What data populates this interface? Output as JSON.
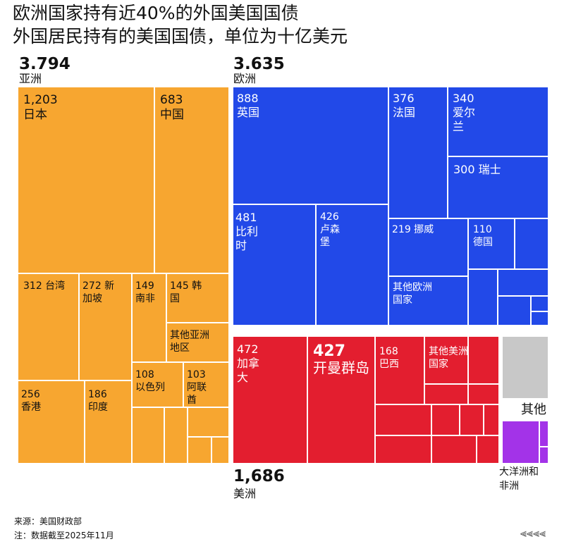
{
  "title": "欧洲国家持有近40%的外国美国国债",
  "subtitle": "外国居民持有的美国国债，单位为十亿美元",
  "source": "来源：美国财政部",
  "note": "注：数据截至2025年11月",
  "chart_data": {
    "type": "treemap",
    "unit": "十亿美元",
    "colors": {
      "亚洲": "#F7A630",
      "欧洲": "#2249E8",
      "美洲": "#E31E2F",
      "其他": "#C8C8C8",
      "大洋洲和非洲": "#A333E8"
    },
    "groups": [
      {
        "name": "亚洲",
        "total": "3.794",
        "color": "#F7A630",
        "items": [
          {
            "label": "1,203 日本",
            "value": 1203
          },
          {
            "label": "683 中国",
            "value": 683
          },
          {
            "label": "312 台湾",
            "value": 312
          },
          {
            "label": "272 新加坡",
            "value": 272
          },
          {
            "label": "149 南非",
            "value": 149
          },
          {
            "label": "145 韩国",
            "value": 145
          },
          {
            "label": "其他亚洲地区",
            "value": null
          },
          {
            "label": "256 香港",
            "value": 256
          },
          {
            "label": "186 印度",
            "value": 186
          },
          {
            "label": "108 以色列",
            "value": 108
          },
          {
            "label": "103 阿联酋",
            "value": 103
          },
          {
            "label": "",
            "value": null
          },
          {
            "label": "",
            "value": null
          },
          {
            "label": "",
            "value": null
          },
          {
            "label": "",
            "value": null
          },
          {
            "label": "",
            "value": null
          }
        ]
      },
      {
        "name": "欧洲",
        "total": "3.635",
        "color": "#2249E8",
        "items": [
          {
            "label": "888 英国",
            "value": 888
          },
          {
            "label": "376 法国",
            "value": 376
          },
          {
            "label": "340 爱尔兰",
            "value": 340
          },
          {
            "label": "300 瑞士",
            "value": 300
          },
          {
            "label": "481 比利时",
            "value": 481
          },
          {
            "label": "426 卢森堡",
            "value": 426
          },
          {
            "label": "219 挪威",
            "value": 219
          },
          {
            "label": "110 德国",
            "value": 110
          },
          {
            "label": "其他欧洲国家",
            "value": null
          },
          {
            "label": "",
            "value": null
          },
          {
            "label": "",
            "value": null
          },
          {
            "label": "",
            "value": null
          },
          {
            "label": "",
            "value": null
          },
          {
            "label": "",
            "value": null
          },
          {
            "label": "",
            "value": null
          },
          {
            "label": "",
            "value": null
          }
        ]
      },
      {
        "name": "美洲",
        "total": "1,686",
        "color": "#E31E2F",
        "items": [
          {
            "label": "472 加拿大",
            "value": 472
          },
          {
            "label": "427 开曼群岛",
            "value": 427
          },
          {
            "label": "168 巴西",
            "value": 168
          },
          {
            "label": "其他美洲国家",
            "value": null
          },
          {
            "label": "",
            "value": null
          },
          {
            "label": "",
            "value": null
          },
          {
            "label": "",
            "value": null
          },
          {
            "label": "",
            "value": null
          },
          {
            "label": "",
            "value": null
          },
          {
            "label": "",
            "value": null
          },
          {
            "label": "",
            "value": null
          },
          {
            "label": "",
            "value": null
          },
          {
            "label": "",
            "value": null
          },
          {
            "label": "",
            "value": null
          }
        ]
      },
      {
        "name": "其他",
        "total": "",
        "color": "#C8C8C8",
        "items": [
          {
            "label": "",
            "value": null
          }
        ]
      },
      {
        "name": "大洋洲和非洲",
        "total": "",
        "color": "#A333E8",
        "items": [
          {
            "label": "",
            "value": null
          },
          {
            "label": "",
            "value": null
          },
          {
            "label": "",
            "value": null
          }
        ]
      }
    ]
  }
}
